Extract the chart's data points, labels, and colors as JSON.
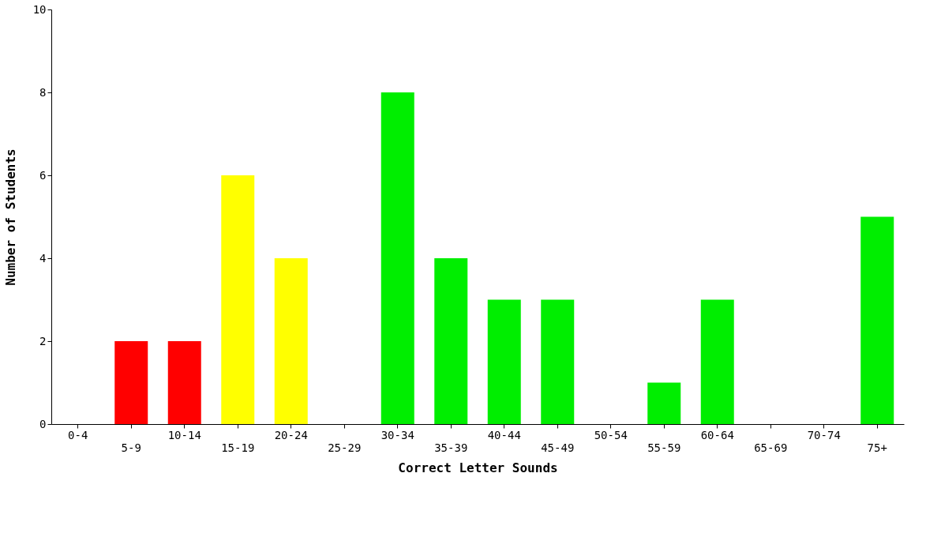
{
  "chart_data": {
    "type": "bar",
    "xlabel": "Correct Letter Sounds",
    "ylabel": "Number of Students",
    "categories": [
      "0-4",
      "5-9",
      "10-14",
      "15-19",
      "20-24",
      "25-29",
      "30-34",
      "35-39",
      "40-44",
      "45-49",
      "50-54",
      "55-59",
      "60-64",
      "65-69",
      "70-74",
      "75+"
    ],
    "values": [
      0,
      2,
      2,
      6,
      4,
      0,
      8,
      4,
      3,
      3,
      0,
      1,
      3,
      0,
      0,
      5
    ],
    "colors": [
      "#ff0000",
      "#ff0000",
      "#ff0000",
      "#ffff00",
      "#ffff00",
      "#00ee00",
      "#00ee00",
      "#00ee00",
      "#00ee00",
      "#00ee00",
      "#00ee00",
      "#00ee00",
      "#00ee00",
      "#00ee00",
      "#00ee00",
      "#00ee00"
    ],
    "ylim": [
      0,
      10
    ],
    "yticks": [
      0,
      2,
      4,
      6,
      8,
      10
    ],
    "grid": false,
    "legend": false
  }
}
